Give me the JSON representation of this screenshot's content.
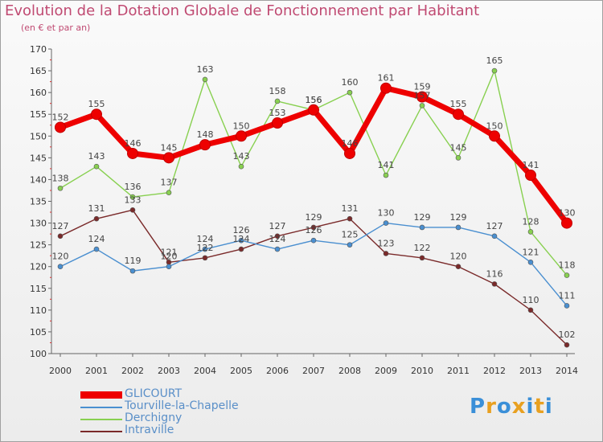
{
  "header": {
    "title": "Evolution de la Dotation Globale de Fonctionnement par Habitant",
    "subtitle": "(en € et par an)"
  },
  "logo": {
    "text": "Proxiti",
    "letters": [
      "P",
      "r",
      "o",
      "x",
      "i",
      "t",
      "i"
    ]
  },
  "chart_data": {
    "type": "line",
    "title": "Evolution de la Dotation Globale de Fonctionnement par Habitant",
    "subtitle": "(en € et par an)",
    "xlabel": "",
    "ylabel": "",
    "x": [
      "2000",
      "2001",
      "2002",
      "2003",
      "2004",
      "2005",
      "2006",
      "2007",
      "2008",
      "2009",
      "2010",
      "2011",
      "2012",
      "2013",
      "2014"
    ],
    "ylim": [
      100,
      170
    ],
    "yticks": [
      100,
      105,
      110,
      115,
      120,
      125,
      130,
      135,
      140,
      145,
      150,
      155,
      160,
      165,
      170
    ],
    "grid": false,
    "legend": "bottom-left",
    "series": [
      {
        "name": "GLICOURT",
        "color": "#ee0000",
        "values": [
          152,
          155,
          146,
          145,
          148,
          150,
          153,
          156,
          146,
          161,
          159,
          155,
          150,
          141,
          130
        ]
      },
      {
        "name": "Tourville-la-Chapelle",
        "color": "#4a8fd0",
        "values": [
          120,
          124,
          119,
          120,
          124,
          126,
          124,
          126,
          125,
          130,
          129,
          129,
          127,
          121,
          111
        ]
      },
      {
        "name": "Derchigny",
        "color": "#88d050",
        "values": [
          138,
          143,
          136,
          137,
          163,
          143,
          158,
          156,
          160,
          141,
          157,
          145,
          165,
          128,
          118
        ]
      },
      {
        "name": "Intraville",
        "color": "#7a2a2a",
        "values": [
          127,
          131,
          133,
          121,
          122,
          124,
          127,
          129,
          131,
          123,
          122,
          120,
          116,
          110,
          102
        ]
      }
    ]
  }
}
